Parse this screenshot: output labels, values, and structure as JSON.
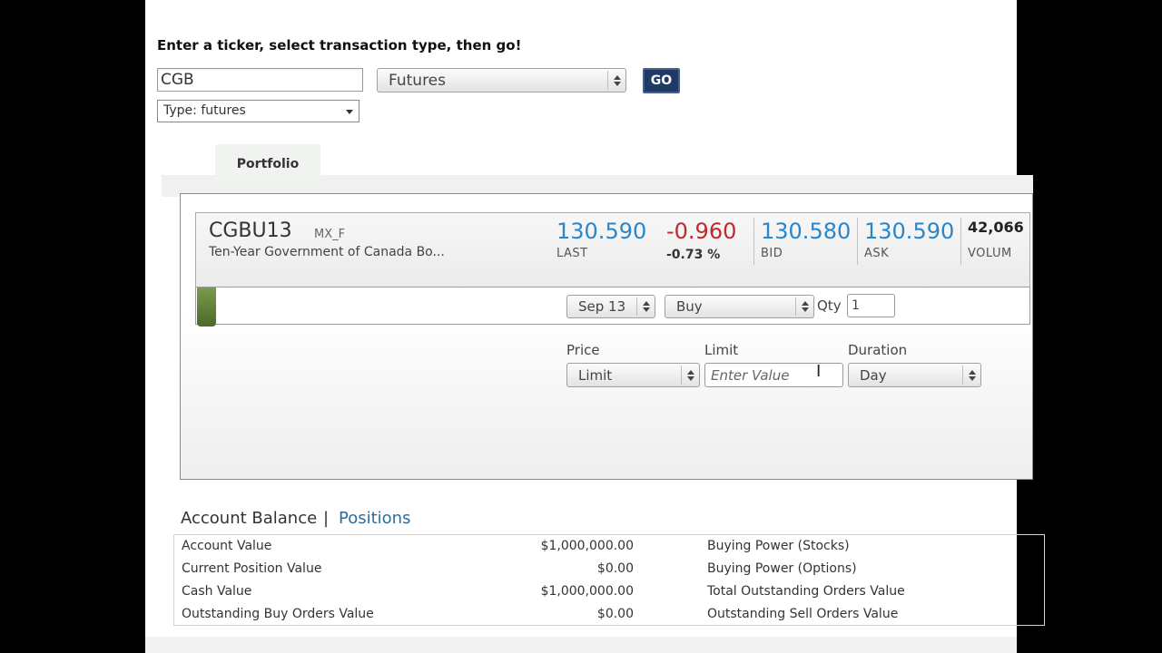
{
  "instruction": "Enter a ticker, select transaction type, then go!",
  "ticker_input": {
    "value": "CGB"
  },
  "transaction_select": {
    "value": "Futures"
  },
  "go_button": {
    "label": "GO"
  },
  "type_select": {
    "value": "Type: futures"
  },
  "tabs": [
    {
      "label": "Portfolio",
      "active": true
    }
  ],
  "quote": {
    "symbol": "CGBU13",
    "exchange": "MX_F",
    "description": "Ten-Year Government of Canada Bo...",
    "last": {
      "value": "130.590",
      "label": "LAST"
    },
    "change": {
      "value": "-0.960",
      "percent": "-0.73 %"
    },
    "bid": {
      "value": "130.580",
      "label": "BID"
    },
    "ask": {
      "value": "130.590",
      "label": "ASK"
    },
    "volume": {
      "value": "42,066",
      "label": "VOLUM"
    }
  },
  "order": {
    "month_select": "Sep 13",
    "side_select": "Buy",
    "qty_label": "Qty",
    "qty_value": "1",
    "price_label": "Price",
    "price_select": "Limit",
    "limit_label": "Limit",
    "limit_placeholder": "Enter Value",
    "duration_label": "Duration",
    "duration_select": "Day"
  },
  "account": {
    "title": "Account Balance",
    "separator": "|",
    "positions_link": "Positions",
    "rows": [
      {
        "label": "Account Value",
        "amount": "$1,000,000.00",
        "label2": "Buying Power (Stocks)"
      },
      {
        "label": "Current Position Value",
        "amount": "$0.00",
        "label2": "Buying Power (Options)"
      },
      {
        "label": "Cash Value",
        "amount": "$1,000,000.00",
        "label2": "Total Outstanding Orders Value"
      },
      {
        "label": "Outstanding Buy Orders Value",
        "amount": "$0.00",
        "label2": "Outstanding Sell Orders Value"
      }
    ]
  },
  "colors": {
    "price_blue": "#2b86c9",
    "change_red": "#c0282f",
    "go_button_bg": "#203a66",
    "link_blue": "#2a6e9e",
    "handle_green": "#5f7f3a"
  }
}
